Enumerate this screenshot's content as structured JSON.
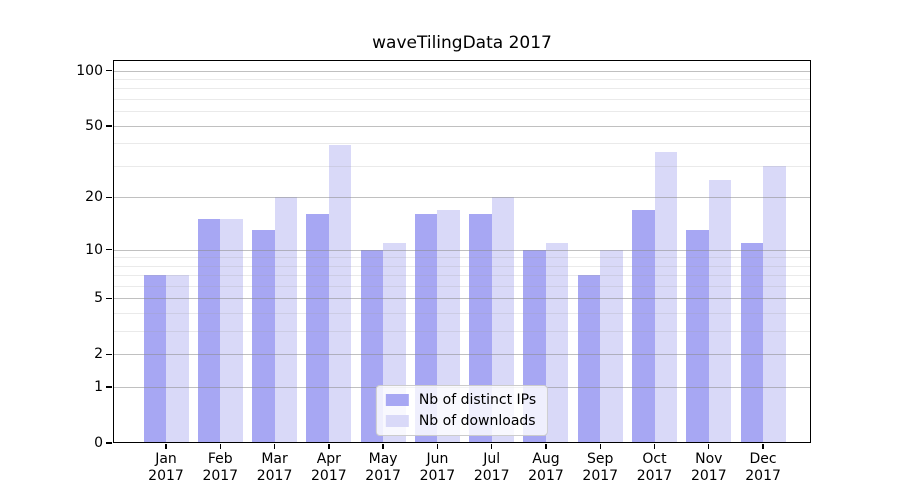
{
  "chart_data": {
    "type": "bar",
    "title": "waveTilingData 2017",
    "categories": [
      "Jan",
      "Feb",
      "Mar",
      "Apr",
      "May",
      "Jun",
      "Jul",
      "Aug",
      "Sep",
      "Oct",
      "Nov",
      "Dec"
    ],
    "category_year": "2017",
    "series": [
      {
        "name": "Nb of distinct IPs",
        "color": "#a7a7f3",
        "values": [
          7,
          15,
          13,
          16,
          10,
          16,
          16,
          10,
          7,
          17,
          13,
          11
        ]
      },
      {
        "name": "Nb of downloads",
        "color": "#d9d9f8",
        "values": [
          7,
          15,
          20,
          39,
          11,
          17,
          20,
          11,
          10,
          36,
          25,
          30
        ]
      }
    ],
    "yscale": "log1p",
    "ylim": [
      0,
      115
    ],
    "yticks": [
      0,
      1,
      2,
      5,
      10,
      20,
      50,
      100
    ],
    "yminorticks": [
      3,
      4,
      6,
      7,
      8,
      9,
      30,
      40,
      60,
      70,
      80,
      90
    ],
    "grid": true,
    "legend_position": "lower center",
    "background_color": "#ffffff",
    "spine_color": "#000000"
  }
}
